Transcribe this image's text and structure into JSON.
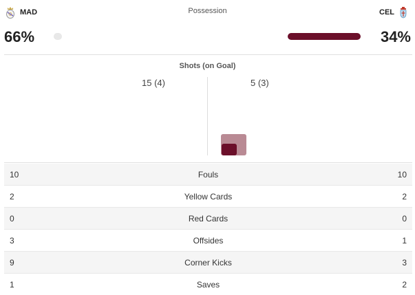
{
  "home": {
    "abbr": "MAD",
    "possession_label": "66%",
    "possession": 66,
    "crest_icon": "real-madrid-crest-icon",
    "color": "#e8e8e8"
  },
  "away": {
    "abbr": "CEL",
    "possession_label": "34%",
    "possession": 34,
    "crest_icon": "celta-crest-icon",
    "color": "#6b0f2a"
  },
  "possession_title": "Possession",
  "shots": {
    "title": "Shots (on Goal)",
    "home_label": "15 (4)",
    "away_label": "5 (3)",
    "home_total": 15,
    "home_on_goal": 4,
    "away_total": 5,
    "away_on_goal": 3,
    "away_total_color": "#b98a94",
    "away_on_goal_color": "#6b0f2a"
  },
  "stats": [
    {
      "label": "Fouls",
      "home": "10",
      "away": "10"
    },
    {
      "label": "Yellow Cards",
      "home": "2",
      "away": "2"
    },
    {
      "label": "Red Cards",
      "home": "0",
      "away": "0"
    },
    {
      "label": "Offsides",
      "home": "3",
      "away": "1"
    },
    {
      "label": "Corner Kicks",
      "home": "9",
      "away": "3"
    },
    {
      "label": "Saves",
      "home": "1",
      "away": "2"
    }
  ]
}
